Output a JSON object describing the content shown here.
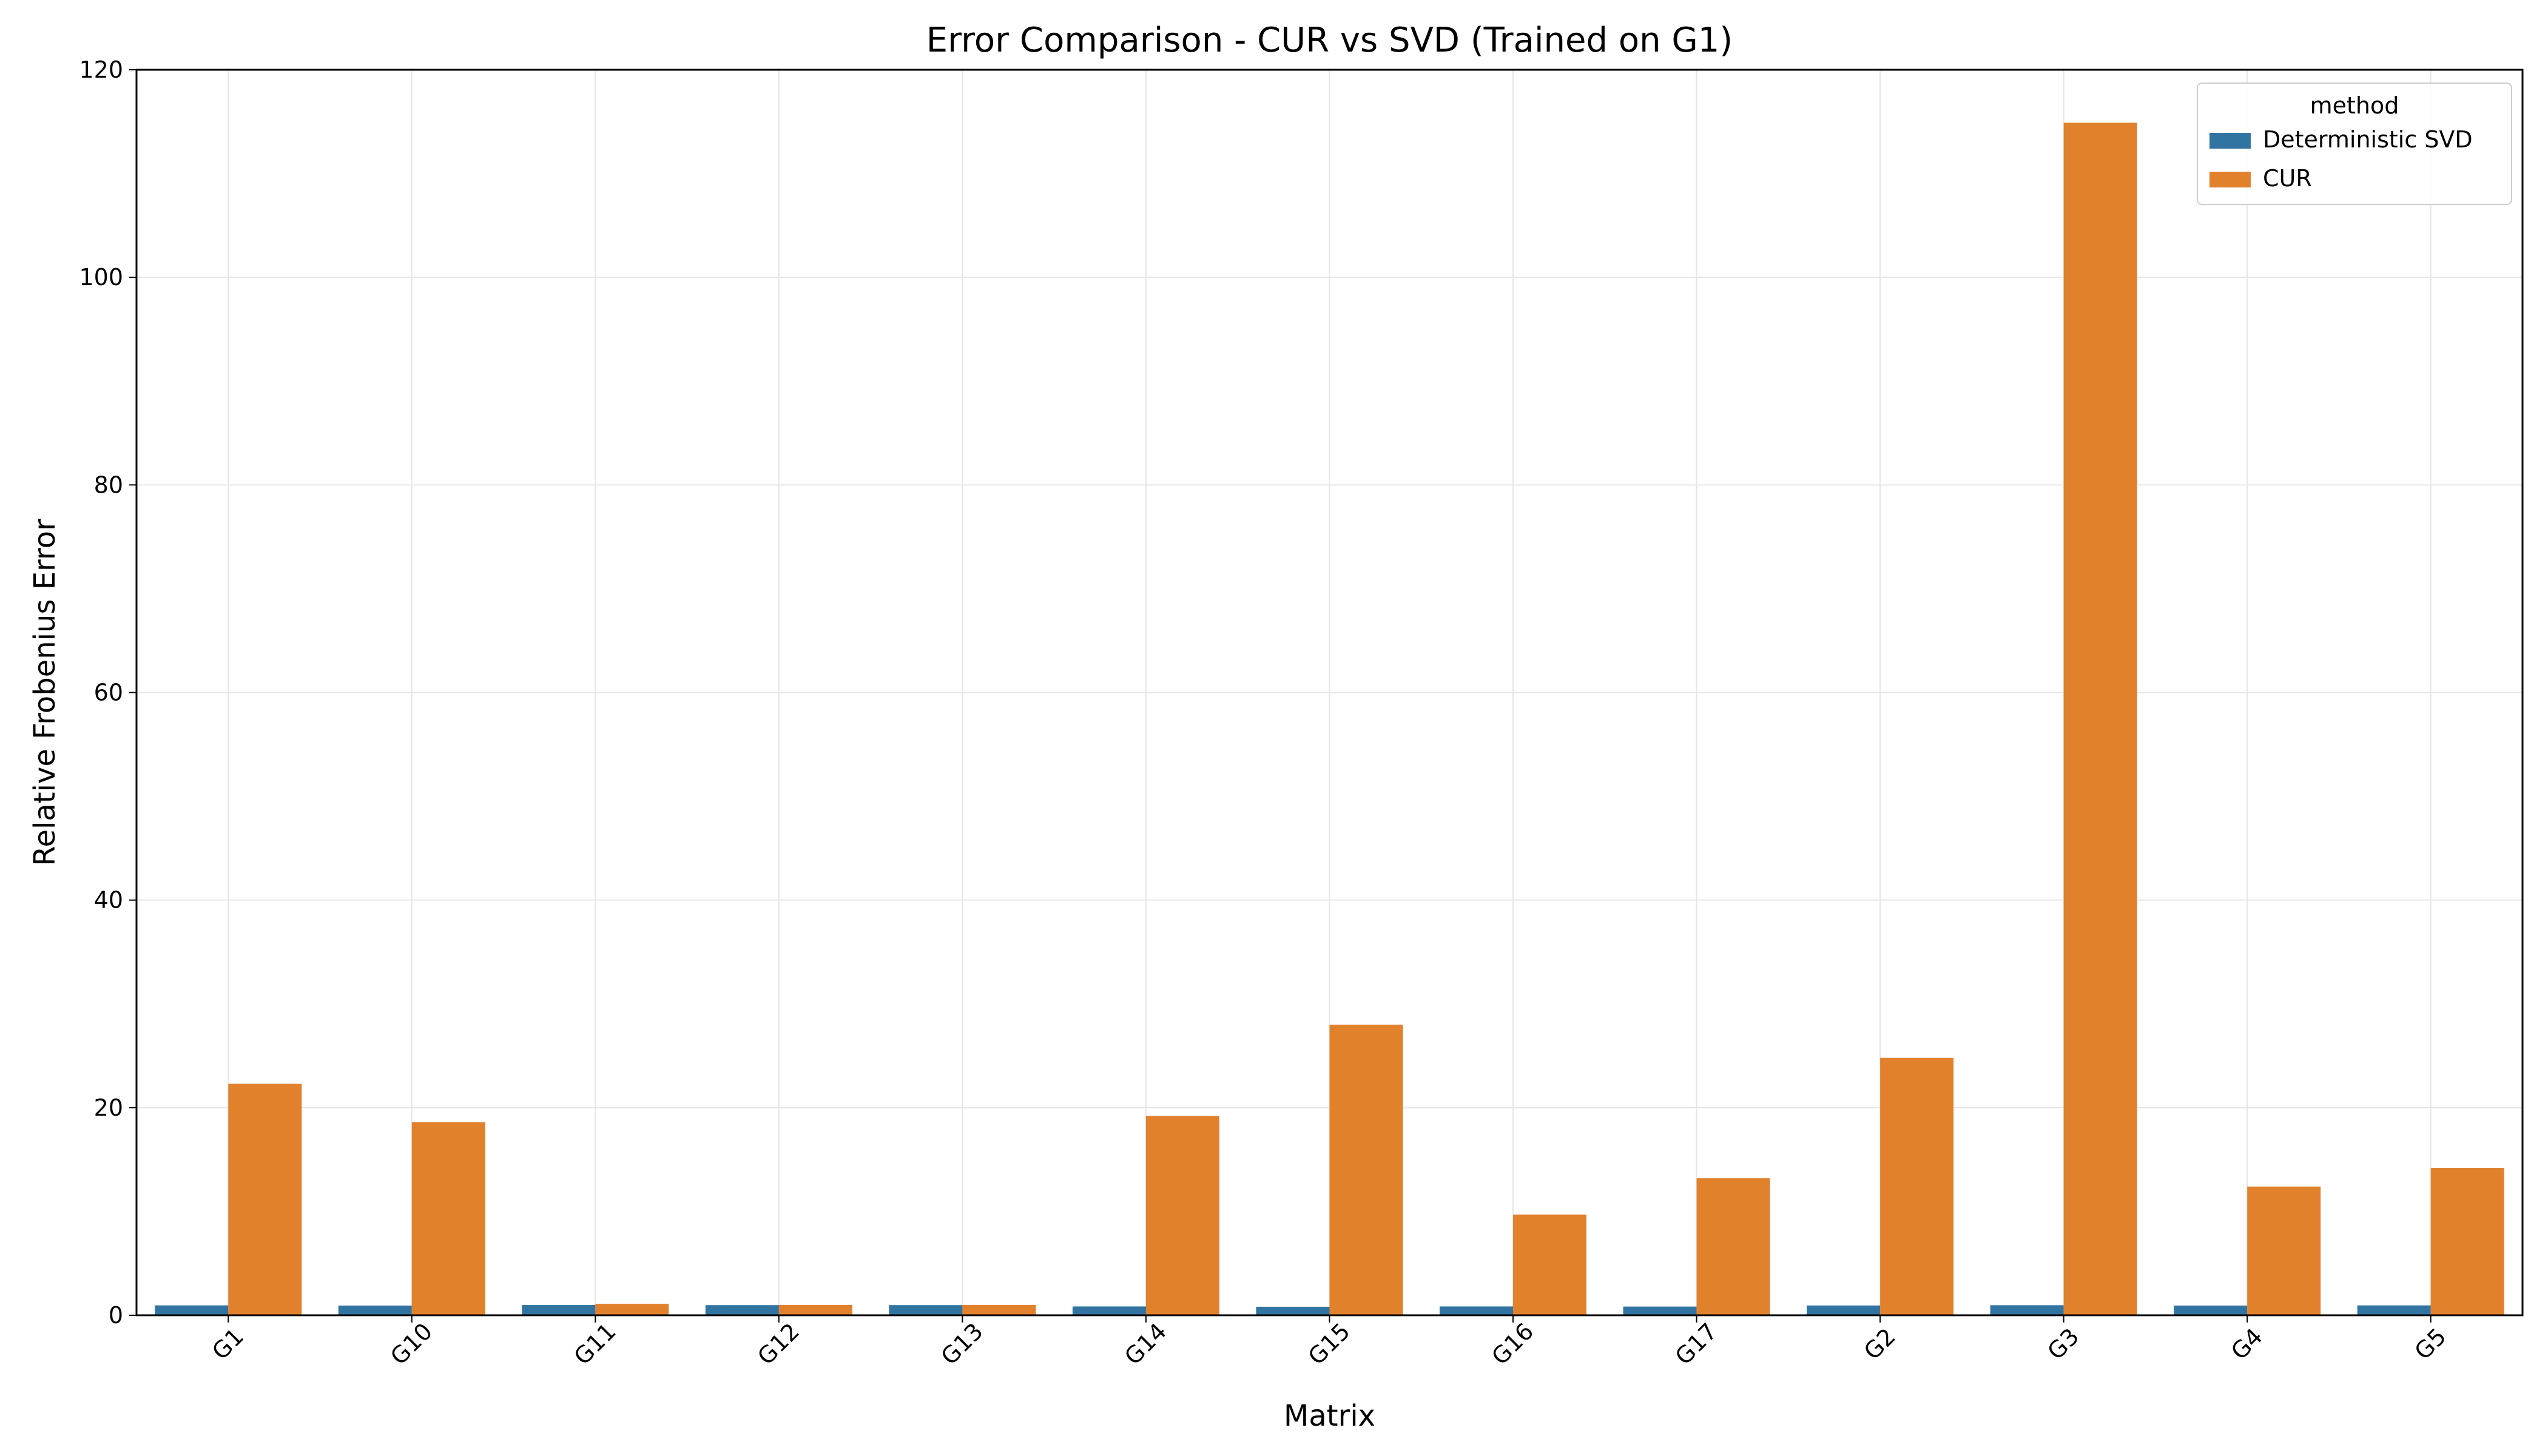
{
  "chart_data": {
    "type": "bar",
    "title": "Error Comparison - CUR vs SVD (Trained on G1)",
    "xlabel": "Matrix",
    "ylabel": "Relative Frobenius Error",
    "categories": [
      "G1",
      "G10",
      "G11",
      "G12",
      "G13",
      "G14",
      "G15",
      "G16",
      "G17",
      "G2",
      "G3",
      "G4",
      "G5"
    ],
    "series": [
      {
        "name": "Deterministic SVD",
        "color": "#3274a1",
        "values": [
          0.95,
          0.93,
          0.99,
          0.98,
          0.98,
          0.85,
          0.82,
          0.85,
          0.84,
          0.94,
          0.97,
          0.93,
          0.95
        ]
      },
      {
        "name": "CUR",
        "color": "#e1812c",
        "values": [
          22.3,
          18.6,
          1.1,
          1.0,
          1.0,
          19.2,
          28.0,
          9.7,
          13.2,
          24.8,
          114.9,
          12.4,
          14.2
        ]
      }
    ],
    "ylim": [
      0,
      120
    ],
    "yticks": [
      0,
      20,
      40,
      60,
      80,
      100,
      120
    ],
    "grid": true,
    "legend": {
      "title": "method",
      "position": "top-right"
    }
  }
}
